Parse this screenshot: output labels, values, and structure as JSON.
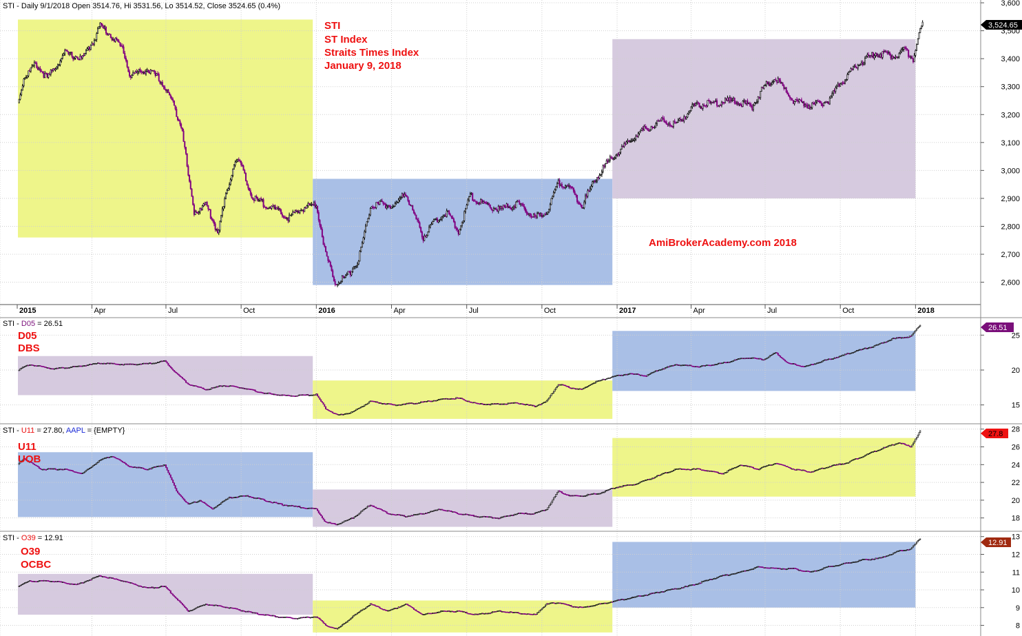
{
  "colors": {
    "yellow_box": "#eef58a",
    "blue_box": "#a9bfe6",
    "purple_box": "#d6cadf",
    "candle_up": "#000000",
    "candle_down": "#800080",
    "annotation": "#ee1111",
    "tag_price": "#000000",
    "tag_d05": "#7a0f7a",
    "tag_u11": "#ee1111",
    "tag_o39": "#a02a10"
  },
  "x_axis": {
    "labels": [
      {
        "text": "2015",
        "bold": true,
        "pos": 0
      },
      {
        "text": "Apr",
        "bold": false,
        "pos": 63
      },
      {
        "text": "Jul",
        "bold": false,
        "pos": 126
      },
      {
        "text": "Oct",
        "bold": false,
        "pos": 190
      },
      {
        "text": "2016",
        "bold": true,
        "pos": 254
      },
      {
        "text": "Apr",
        "bold": false,
        "pos": 318
      },
      {
        "text": "Jul",
        "bold": false,
        "pos": 382
      },
      {
        "text": "Oct",
        "bold": false,
        "pos": 446
      },
      {
        "text": "2017",
        "bold": true,
        "pos": 510
      },
      {
        "text": "Apr",
        "bold": false,
        "pos": 573
      },
      {
        "text": "Jul",
        "bold": false,
        "pos": 636
      },
      {
        "text": "Oct",
        "bold": false,
        "pos": 700
      },
      {
        "text": "2018",
        "bold": true,
        "pos": 764
      }
    ]
  },
  "panes": {
    "sti": {
      "header": "STI - Daily 9/1/2018 Open 3514.76, Hi 3531.56, Lo 3514.52, Close 3524.65 (0.4%)",
      "annotations": [
        "STI",
        "ST Index",
        "Straits Times Index",
        "January 9, 2018"
      ],
      "watermark": "AmiBrokerAcademy.com  2018",
      "last_tag": "3,524.65",
      "y_ticks": [
        "3,600",
        "3,500",
        "3,400",
        "3,300",
        "3,200",
        "3,100",
        "3,000",
        "2,900",
        "2,800",
        "2,700",
        "2,600"
      ]
    },
    "d05": {
      "header_prefix": "STI - ",
      "header_symbol": "D05",
      "header_rest": " = 26.51",
      "annotations": [
        "D05",
        "DBS"
      ],
      "last_tag": "26.51",
      "y_ticks": [
        "25",
        "20",
        "15"
      ]
    },
    "u11": {
      "header_prefix": "STI - ",
      "header_symbol": "U11",
      "header_rest": " = 27.80, ",
      "header_extra": "AAPL",
      "header_extra_rest": " = {EMPTY}",
      "annotations": [
        "U11",
        "UOB"
      ],
      "last_tag": "27.8",
      "y_ticks": [
        "28",
        "26",
        "24",
        "22",
        "20",
        "18"
      ]
    },
    "o39": {
      "header_prefix": "STI - ",
      "header_symbol": "O39",
      "header_rest": " = 12.91",
      "annotations": [
        "O39",
        "OCBC"
      ],
      "last_tag": "12.91",
      "y_ticks": [
        "13",
        "12",
        "11",
        "10",
        "9",
        "8"
      ]
    }
  },
  "series_anchors": {
    "sti": [
      [
        0,
        3240
      ],
      [
        5,
        3330
      ],
      [
        15,
        3380
      ],
      [
        25,
        3330
      ],
      [
        40,
        3420
      ],
      [
        55,
        3400
      ],
      [
        65,
        3470
      ],
      [
        70,
        3520
      ],
      [
        80,
        3480
      ],
      [
        90,
        3430
      ],
      [
        95,
        3340
      ],
      [
        110,
        3360
      ],
      [
        120,
        3330
      ],
      [
        130,
        3260
      ],
      [
        140,
        3150
      ],
      [
        145,
        2980
      ],
      [
        150,
        2850
      ],
      [
        160,
        2880
      ],
      [
        170,
        2780
      ],
      [
        180,
        2960
      ],
      [
        185,
        3040
      ],
      [
        190,
        3020
      ],
      [
        195,
        2950
      ],
      [
        200,
        2900
      ],
      [
        215,
        2870
      ],
      [
        230,
        2830
      ],
      [
        245,
        2870
      ],
      [
        254,
        2880
      ],
      [
        262,
        2700
      ],
      [
        270,
        2600
      ],
      [
        280,
        2620
      ],
      [
        290,
        2680
      ],
      [
        300,
        2870
      ],
      [
        310,
        2880
      ],
      [
        320,
        2870
      ],
      [
        330,
        2920
      ],
      [
        345,
        2760
      ],
      [
        355,
        2820
      ],
      [
        365,
        2850
      ],
      [
        375,
        2780
      ],
      [
        385,
        2910
      ],
      [
        395,
        2880
      ],
      [
        410,
        2860
      ],
      [
        425,
        2880
      ],
      [
        440,
        2830
      ],
      [
        450,
        2850
      ],
      [
        460,
        2960
      ],
      [
        470,
        2940
      ],
      [
        480,
        2870
      ],
      [
        490,
        2960
      ],
      [
        500,
        3020
      ],
      [
        515,
        3080
      ],
      [
        530,
        3140
      ],
      [
        550,
        3180
      ],
      [
        560,
        3160
      ],
      [
        575,
        3230
      ],
      [
        590,
        3240
      ],
      [
        610,
        3250
      ],
      [
        625,
        3230
      ],
      [
        635,
        3300
      ],
      [
        645,
        3330
      ],
      [
        660,
        3250
      ],
      [
        675,
        3230
      ],
      [
        690,
        3250
      ],
      [
        700,
        3310
      ],
      [
        715,
        3380
      ],
      [
        730,
        3420
      ],
      [
        745,
        3410
      ],
      [
        755,
        3430
      ],
      [
        762,
        3400
      ],
      [
        770,
        3530
      ]
    ],
    "d05": [
      [
        0,
        20
      ],
      [
        10,
        20.8
      ],
      [
        30,
        20.2
      ],
      [
        50,
        20.5
      ],
      [
        70,
        21
      ],
      [
        90,
        20.8
      ],
      [
        110,
        20.9
      ],
      [
        125,
        21.3
      ],
      [
        135,
        19.5
      ],
      [
        145,
        18
      ],
      [
        160,
        17.2
      ],
      [
        175,
        17.8
      ],
      [
        190,
        17.5
      ],
      [
        210,
        16.7
      ],
      [
        230,
        16.3
      ],
      [
        254,
        16.5
      ],
      [
        262,
        14.5
      ],
      [
        272,
        13.5
      ],
      [
        285,
        14
      ],
      [
        300,
        15.5
      ],
      [
        320,
        15
      ],
      [
        340,
        15.3
      ],
      [
        360,
        15.8
      ],
      [
        375,
        16
      ],
      [
        390,
        15.2
      ],
      [
        405,
        15.1
      ],
      [
        425,
        15.3
      ],
      [
        440,
        14.8
      ],
      [
        450,
        15.5
      ],
      [
        460,
        18
      ],
      [
        470,
        17.5
      ],
      [
        480,
        17.2
      ],
      [
        490,
        18.2
      ],
      [
        505,
        19
      ],
      [
        520,
        19.5
      ],
      [
        535,
        19.2
      ],
      [
        545,
        20
      ],
      [
        560,
        20.8
      ],
      [
        580,
        20.5
      ],
      [
        600,
        21
      ],
      [
        620,
        21.8
      ],
      [
        635,
        21.5
      ],
      [
        645,
        22.5
      ],
      [
        655,
        21
      ],
      [
        670,
        20.5
      ],
      [
        685,
        21.3
      ],
      [
        700,
        22
      ],
      [
        715,
        22.8
      ],
      [
        730,
        23.5
      ],
      [
        745,
        24.5
      ],
      [
        760,
        24.8
      ],
      [
        768,
        26.5
      ]
    ],
    "u11": [
      [
        0,
        24
      ],
      [
        5,
        24.7
      ],
      [
        20,
        23.5
      ],
      [
        40,
        23.5
      ],
      [
        55,
        23
      ],
      [
        70,
        24.5
      ],
      [
        80,
        25
      ],
      [
        95,
        23.8
      ],
      [
        110,
        23.5
      ],
      [
        125,
        24
      ],
      [
        135,
        21
      ],
      [
        145,
        19.5
      ],
      [
        155,
        20
      ],
      [
        165,
        19
      ],
      [
        180,
        20.3
      ],
      [
        195,
        20.5
      ],
      [
        210,
        20
      ],
      [
        225,
        19.5
      ],
      [
        254,
        19
      ],
      [
        262,
        17.5
      ],
      [
        272,
        17.3
      ],
      [
        285,
        18
      ],
      [
        300,
        19.5
      ],
      [
        315,
        18.5
      ],
      [
        330,
        18.2
      ],
      [
        345,
        18.5
      ],
      [
        360,
        19
      ],
      [
        375,
        18.5
      ],
      [
        390,
        18.2
      ],
      [
        410,
        18
      ],
      [
        425,
        18.5
      ],
      [
        440,
        18.5
      ],
      [
        450,
        19
      ],
      [
        460,
        21
      ],
      [
        470,
        20.5
      ],
      [
        480,
        20.5
      ],
      [
        495,
        20.8
      ],
      [
        510,
        21.5
      ],
      [
        525,
        21.8
      ],
      [
        540,
        22.5
      ],
      [
        560,
        23.5
      ],
      [
        580,
        23.5
      ],
      [
        600,
        23
      ],
      [
        615,
        24
      ],
      [
        630,
        23.5
      ],
      [
        645,
        24.2
      ],
      [
        660,
        23.5
      ],
      [
        675,
        23.2
      ],
      [
        690,
        23.8
      ],
      [
        705,
        24.2
      ],
      [
        720,
        25
      ],
      [
        735,
        25.8
      ],
      [
        750,
        26.5
      ],
      [
        760,
        26
      ],
      [
        768,
        27.8
      ]
    ],
    "o39": [
      [
        0,
        10.2
      ],
      [
        10,
        10.5
      ],
      [
        30,
        10.5
      ],
      [
        50,
        10.3
      ],
      [
        70,
        10.8
      ],
      [
        90,
        10.5
      ],
      [
        110,
        10.1
      ],
      [
        125,
        10.2
      ],
      [
        135,
        9.5
      ],
      [
        145,
        8.8
      ],
      [
        160,
        9.2
      ],
      [
        180,
        9
      ],
      [
        200,
        8.7
      ],
      [
        220,
        8.5
      ],
      [
        235,
        8.4
      ],
      [
        254,
        8.5
      ],
      [
        262,
        8
      ],
      [
        272,
        7.8
      ],
      [
        285,
        8.5
      ],
      [
        300,
        9.2
      ],
      [
        315,
        8.8
      ],
      [
        330,
        9.2
      ],
      [
        345,
        8.6
      ],
      [
        360,
        8.8
      ],
      [
        375,
        8.8
      ],
      [
        390,
        8.6
      ],
      [
        410,
        8.8
      ],
      [
        425,
        8.7
      ],
      [
        440,
        8.6
      ],
      [
        450,
        9.2
      ],
      [
        460,
        9.3
      ],
      [
        470,
        9.1
      ],
      [
        480,
        9
      ],
      [
        495,
        9.2
      ],
      [
        510,
        9.4
      ],
      [
        525,
        9.6
      ],
      [
        540,
        9.8
      ],
      [
        555,
        10
      ],
      [
        570,
        10.2
      ],
      [
        585,
        10.5
      ],
      [
        600,
        10.8
      ],
      [
        615,
        11
      ],
      [
        630,
        11.3
      ],
      [
        645,
        11.2
      ],
      [
        660,
        11.2
      ],
      [
        675,
        11
      ],
      [
        690,
        11.3
      ],
      [
        705,
        11.5
      ],
      [
        720,
        11.7
      ],
      [
        735,
        11.8
      ],
      [
        750,
        12.2
      ],
      [
        760,
        12.3
      ],
      [
        768,
        12.9
      ]
    ]
  }
}
